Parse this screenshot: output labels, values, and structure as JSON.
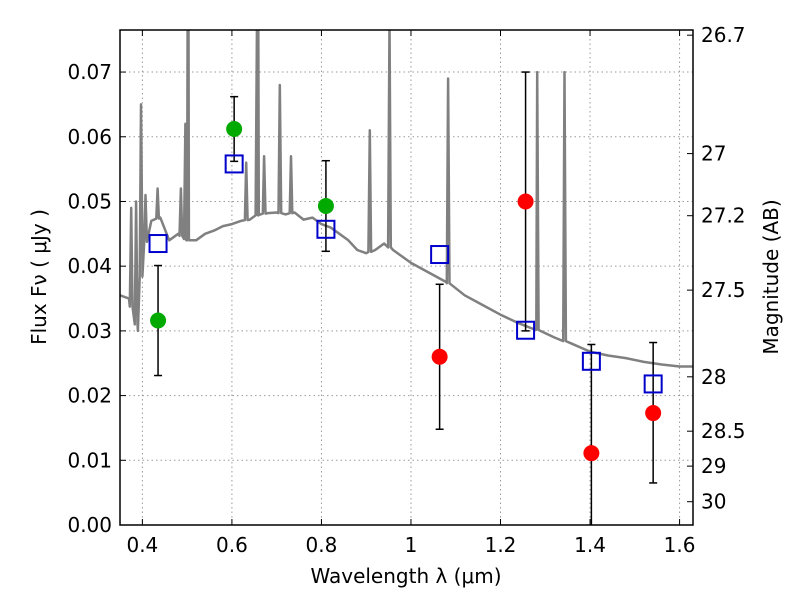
{
  "chart_data": {
    "type": "scatter",
    "xlabel": "Wavelength  λ (μm)",
    "ylabel": "Flux  Fν  ( μJy )",
    "y2label": "Magnitude (AB)",
    "xlim": [
      0.35,
      1.63
    ],
    "ylim": [
      0.0,
      0.0765
    ],
    "grid": true,
    "x_ticks": [
      0.4,
      0.6,
      0.8,
      1.0,
      1.2,
      1.4,
      1.6
    ],
    "x_tick_labels": [
      "0.4",
      "0.6",
      "0.8",
      "1",
      "1.2",
      "1.4",
      "1.6"
    ],
    "y_ticks": [
      0.0,
      0.01,
      0.02,
      0.03,
      0.04,
      0.05,
      0.06,
      0.07
    ],
    "y_tick_labels": [
      "0.00",
      "0.01",
      "0.02",
      "0.03",
      "0.04",
      "0.05",
      "0.06",
      "0.07"
    ],
    "y2_ticks": [
      {
        "label": "26.7",
        "flux": 0.0757
      },
      {
        "label": "27",
        "flux": 0.0574
      },
      {
        "label": "27.2",
        "flux": 0.0478
      },
      {
        "label": "27.5",
        "flux": 0.0363
      },
      {
        "label": "28",
        "flux": 0.0229
      },
      {
        "label": "28.5",
        "flux": 0.0145
      },
      {
        "label": "29",
        "flux": 0.0091
      },
      {
        "label": "30",
        "flux": 0.0036
      }
    ],
    "colors": {
      "detection": "#00aa00",
      "upper_limit": "#ff0000",
      "model_photometry": "#0000cc",
      "sed": "#808080",
      "errorbar": "#000000"
    },
    "series": [
      {
        "style": "green-circle",
        "x": [
          0.435,
          0.605,
          0.81
        ],
        "y": [
          0.0316,
          0.0612,
          0.0493
        ],
        "yerr_low": [
          0.0085,
          0.005,
          0.007
        ],
        "yerr_high": [
          0.0085,
          0.005,
          0.007
        ]
      },
      {
        "style": "red-circle",
        "x": [
          1.064,
          1.256,
          1.403,
          1.541
        ],
        "y": [
          0.026,
          0.05,
          0.0111,
          0.0173
        ],
        "yerr_low": [
          0.0112,
          0.02,
          0.0111,
          0.0108
        ],
        "yerr_high": [
          0.0112,
          0.02,
          0.0168,
          0.0109
        ]
      },
      {
        "style": "blue-open-square",
        "x": [
          0.435,
          0.605,
          0.81,
          1.064,
          1.256,
          1.403,
          1.541
        ],
        "y": [
          0.0435,
          0.0558,
          0.0457,
          0.0418,
          0.0301,
          0.0253,
          0.0218
        ]
      }
    ],
    "sed_continuum": {
      "x": [
        0.35,
        0.37,
        0.39,
        0.4,
        0.42,
        0.44,
        0.46,
        0.48,
        0.5,
        0.52,
        0.54,
        0.56,
        0.58,
        0.6,
        0.62,
        0.64,
        0.66,
        0.68,
        0.7,
        0.72,
        0.74,
        0.76,
        0.78,
        0.8,
        0.82,
        0.84,
        0.86,
        0.88,
        0.9,
        0.92,
        0.94,
        0.96,
        1.0,
        1.04,
        1.08,
        1.12,
        1.16,
        1.2,
        1.24,
        1.28,
        1.32,
        1.36,
        1.4,
        1.44,
        1.48,
        1.52,
        1.56,
        1.6,
        1.63
      ],
      "y": [
        0.0355,
        0.035,
        0.03,
        0.042,
        0.047,
        0.0475,
        0.044,
        0.045,
        0.044,
        0.044,
        0.045,
        0.0455,
        0.0462,
        0.0465,
        0.047,
        0.0472,
        0.048,
        0.0482,
        0.0483,
        0.048,
        0.0483,
        0.0472,
        0.0475,
        0.0465,
        0.046,
        0.045,
        0.044,
        0.0425,
        0.042,
        0.0425,
        0.0435,
        0.0425,
        0.0405,
        0.039,
        0.0375,
        0.0355,
        0.034,
        0.0325,
        0.0312,
        0.0302,
        0.029,
        0.028,
        0.0268,
        0.0262,
        0.0258,
        0.0252,
        0.0248,
        0.0245,
        0.0245
      ]
    },
    "sed_lines": [
      {
        "x": 0.375,
        "peak": 0.049
      },
      {
        "x": 0.386,
        "peak": 0.05
      },
      {
        "x": 0.397,
        "peak": 0.065
      },
      {
        "x": 0.407,
        "peak": 0.051
      },
      {
        "x": 0.434,
        "peak": 0.052
      },
      {
        "x": 0.486,
        "peak": 0.052
      },
      {
        "x": 0.496,
        "peak": 0.062
      },
      {
        "x": 0.501,
        "peak": 0.078
      },
      {
        "x": 0.503,
        "peak": 0.078
      },
      {
        "x": 0.656,
        "peak": 0.078
      },
      {
        "x": 0.659,
        "peak": 0.078
      },
      {
        "x": 0.632,
        "peak": 0.056
      },
      {
        "x": 0.672,
        "peak": 0.057
      },
      {
        "x": 0.707,
        "peak": 0.068
      },
      {
        "x": 0.732,
        "peak": 0.057
      },
      {
        "x": 0.908,
        "peak": 0.061
      },
      {
        "x": 0.952,
        "peak": 0.078
      },
      {
        "x": 1.083,
        "peak": 0.069
      },
      {
        "x": 1.282,
        "peak": 0.07
      },
      {
        "x": 1.343,
        "peak": 0.07
      }
    ]
  }
}
